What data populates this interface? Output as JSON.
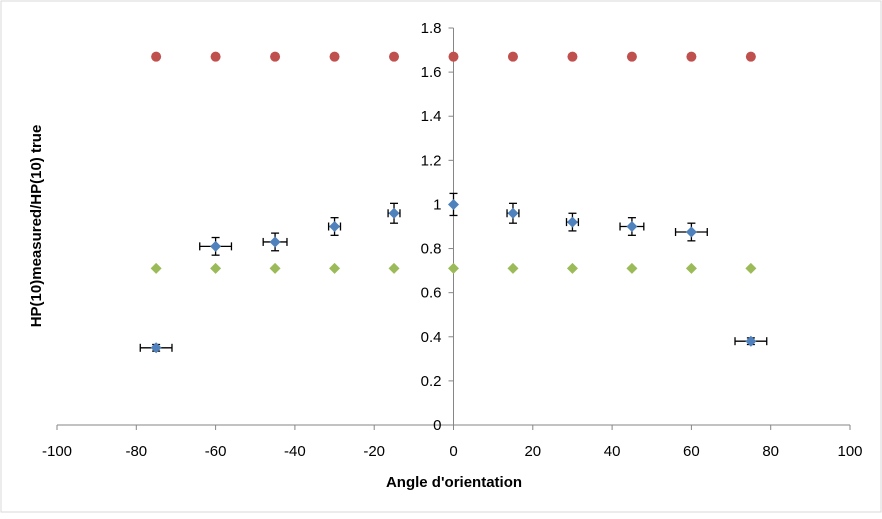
{
  "chart_data": {
    "type": "scatter",
    "title": "",
    "xlabel": "Angle d'orientation",
    "ylabel": "HP(10)measured/HP(10) true",
    "xlim": [
      -100,
      100
    ],
    "ylim": [
      0,
      1.8
    ],
    "x_ticks": [
      "-100",
      "-80",
      "-60",
      "-40",
      "-20",
      "0",
      "20",
      "40",
      "60",
      "80",
      "100"
    ],
    "y_ticks": [
      "0",
      "0.2",
      "0.4",
      "0.6",
      "0.8",
      "1",
      "1.2",
      "1.4",
      "1.6",
      "1.8"
    ],
    "grid": false,
    "legend": "none",
    "series": [
      {
        "color": "#4f81bd",
        "marker": "diamond",
        "points": [
          {
            "x": -75,
            "y": 0.35,
            "xerr": 4,
            "yerr": 0.015
          },
          {
            "x": -60,
            "y": 0.81,
            "xerr": 4,
            "yerr": 0.04
          },
          {
            "x": -45,
            "y": 0.83,
            "xerr": 3,
            "yerr": 0.04
          },
          {
            "x": -30,
            "y": 0.9,
            "xerr": 1.5,
            "yerr": 0.04
          },
          {
            "x": -15,
            "y": 0.96,
            "xerr": 1.5,
            "yerr": 0.045
          },
          {
            "x": 0,
            "y": 1.0,
            "xerr": 0,
            "yerr": 0.05
          },
          {
            "x": 15,
            "y": 0.96,
            "xerr": 1.5,
            "yerr": 0.045
          },
          {
            "x": 30,
            "y": 0.92,
            "xerr": 1.5,
            "yerr": 0.04
          },
          {
            "x": 45,
            "y": 0.9,
            "xerr": 3,
            "yerr": 0.04
          },
          {
            "x": 60,
            "y": 0.875,
            "xerr": 4,
            "yerr": 0.04
          },
          {
            "x": 75,
            "y": 0.38,
            "xerr": 4,
            "yerr": 0.015
          }
        ]
      },
      {
        "color": "#c0504d",
        "marker": "circle",
        "points": [
          {
            "x": -75,
            "y": 1.67
          },
          {
            "x": -60,
            "y": 1.67
          },
          {
            "x": -45,
            "y": 1.67
          },
          {
            "x": -30,
            "y": 1.67
          },
          {
            "x": -15,
            "y": 1.67
          },
          {
            "x": 0,
            "y": 1.67
          },
          {
            "x": 15,
            "y": 1.67
          },
          {
            "x": 30,
            "y": 1.67
          },
          {
            "x": 45,
            "y": 1.67
          },
          {
            "x": 60,
            "y": 1.67
          },
          {
            "x": 75,
            "y": 1.67
          }
        ]
      },
      {
        "color": "#9bbb59",
        "marker": "diamond",
        "points": [
          {
            "x": -75,
            "y": 0.71
          },
          {
            "x": -60,
            "y": 0.71
          },
          {
            "x": -45,
            "y": 0.71
          },
          {
            "x": -30,
            "y": 0.71
          },
          {
            "x": -15,
            "y": 0.71
          },
          {
            "x": 0,
            "y": 0.71
          },
          {
            "x": 15,
            "y": 0.71
          },
          {
            "x": 30,
            "y": 0.71
          },
          {
            "x": 45,
            "y": 0.71
          },
          {
            "x": 60,
            "y": 0.71
          },
          {
            "x": 75,
            "y": 0.71
          }
        ]
      }
    ]
  }
}
